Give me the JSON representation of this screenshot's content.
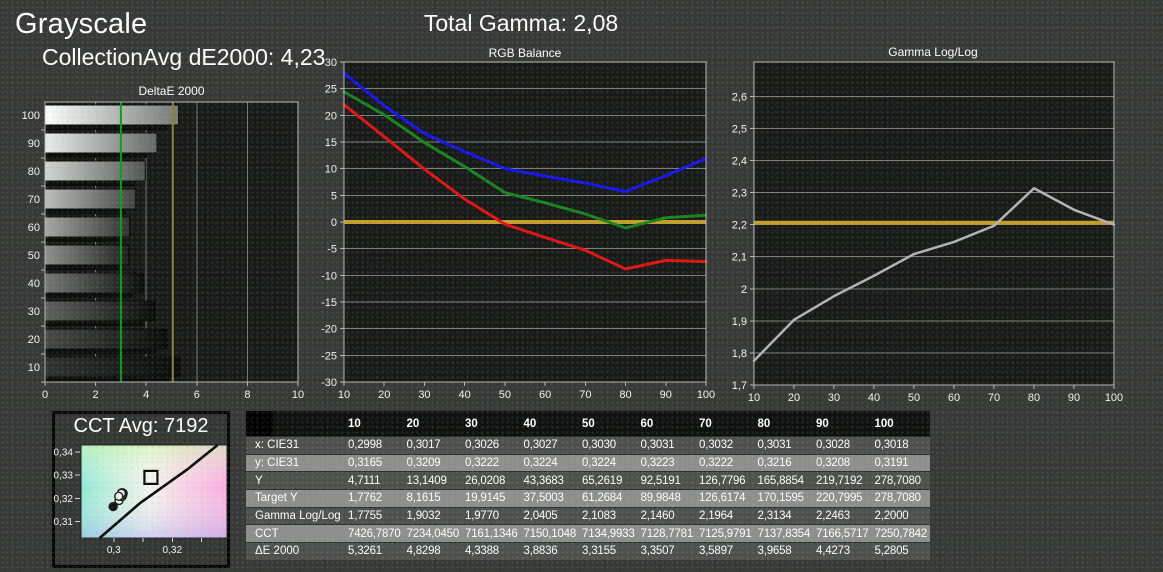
{
  "page": {
    "title": "Grayscale",
    "collection_avg": "CollectionAvg dE2000: 4,23",
    "total_gamma": "Total Gamma: 2,08"
  },
  "colors": {
    "background": "#383838",
    "plot_background": "#191919",
    "grid": "#8f8f8f",
    "plot_border": "#b8b8b8",
    "text": "#ffffff",
    "reference_yellow": "#c49d27",
    "target_green": "#00a414",
    "limit_olive": "#8d7f26",
    "series_red": "#e11212",
    "series_green": "#17831d",
    "series_blue": "#1414ef",
    "series_gamma": "#b3b3b6",
    "table_header_bg": "#101010",
    "table_row_dark": "#4f4f4f",
    "table_row_light": "#8e8e8e"
  },
  "chart_data": [
    {
      "id": "deltae",
      "type": "bar",
      "title": "DeltaE 2000",
      "orientation": "horizontal",
      "categories": [
        "100",
        "90",
        "80",
        "70",
        "60",
        "50",
        "40",
        "30",
        "20",
        "10"
      ],
      "levels": [
        100,
        90,
        80,
        70,
        60,
        50,
        40,
        30,
        20,
        10
      ],
      "values": [
        5.2805,
        4.4273,
        3.9658,
        3.5897,
        3.3507,
        3.3155,
        3.8836,
        4.3388,
        4.8298,
        5.3261
      ],
      "xlim": [
        0,
        10
      ],
      "xtick_values": [
        0,
        2,
        4,
        6,
        8,
        10
      ],
      "xticks": [
        "0",
        "2",
        "4",
        "6",
        "8",
        "10"
      ],
      "target_line": 3.0,
      "limit_line": 5.05,
      "grid": "vertical",
      "legend": "none"
    },
    {
      "id": "rgb_balance",
      "type": "line",
      "title": "RGB Balance",
      "x": [
        10,
        20,
        30,
        40,
        50,
        60,
        70,
        80,
        90,
        100
      ],
      "xticks": [
        "10",
        "20",
        "30",
        "40",
        "50",
        "60",
        "70",
        "80",
        "90",
        "100"
      ],
      "ylim": [
        -30,
        30
      ],
      "ytick_values": [
        30,
        25,
        20,
        15,
        10,
        5,
        0,
        -5,
        -10,
        -15,
        -20,
        -25,
        -30
      ],
      "yticks": [
        "30",
        "25",
        "20",
        "15",
        "10",
        "5",
        "0",
        "-5",
        "-10",
        "-15",
        "-20",
        "-25",
        "-30"
      ],
      "reference_line": 0,
      "grid": "horizontal",
      "legend": "none",
      "series": [
        {
          "name": "Blue",
          "color_key": "series_blue",
          "values": [
            27.9,
            21.8,
            16.6,
            13.2,
            10.0,
            8.6,
            7.3,
            5.7,
            8.7,
            11.9
          ]
        },
        {
          "name": "Green",
          "color_key": "series_green",
          "values": [
            24.4,
            20.1,
            14.9,
            10.4,
            5.5,
            3.6,
            1.5,
            -1.1,
            0.8,
            1.3
          ]
        },
        {
          "name": "Red",
          "color_key": "series_red",
          "values": [
            22.0,
            16.0,
            9.9,
            4.3,
            -0.4,
            -2.9,
            -5.3,
            -8.8,
            -7.2,
            -7.4
          ]
        }
      ]
    },
    {
      "id": "gamma_loglog",
      "type": "line",
      "title": "Gamma Log/Log",
      "x": [
        10,
        20,
        30,
        40,
        50,
        60,
        70,
        80,
        90,
        100
      ],
      "xticks": [
        "10",
        "20",
        "30",
        "40",
        "50",
        "60",
        "70",
        "80",
        "90",
        "100"
      ],
      "ylim": [
        1.7,
        2.707
      ],
      "ytick_values": [
        2.6,
        2.5,
        2.4,
        2.3,
        2.2,
        2.1,
        2.0,
        1.9,
        1.8,
        1.7
      ],
      "yticks": [
        "2,6",
        "2,5",
        "2,4",
        "2,3",
        "2,2",
        "2,1",
        "2",
        "1,9",
        "1,8",
        "1,7"
      ],
      "reference_line": 2.206,
      "grid": "horizontal",
      "legend": "none",
      "series": [
        {
          "name": "Gamma Log/Log",
          "color_key": "series_gamma",
          "values": [
            1.7755,
            1.9032,
            1.977,
            2.0405,
            2.1083,
            2.146,
            2.1964,
            2.3134,
            2.2463,
            2.2
          ]
        }
      ]
    },
    {
      "id": "cie_scatter",
      "type": "scatter",
      "title": "CCT Avg: 7192",
      "xlim": [
        0.2888,
        0.3387
      ],
      "ylim": [
        0.303,
        0.3429
      ],
      "xticks": [
        {
          "v": 0.3,
          "label": "0,3"
        },
        {
          "v": 0.31,
          "label": ""
        },
        {
          "v": 0.32,
          "label": "0,32"
        },
        {
          "v": 0.33,
          "label": ""
        }
      ],
      "yticks": [
        {
          "v": 0.34,
          "label": "0,34"
        },
        {
          "v": 0.33,
          "label": "0,33"
        },
        {
          "v": 0.32,
          "label": "0,32"
        },
        {
          "v": 0.31,
          "label": "0,31"
        }
      ],
      "target": {
        "x": 0.3127,
        "y": 0.329
      },
      "locus": [
        [
          0.2952,
          0.303
        ],
        [
          0.309,
          0.318
        ],
        [
          0.325,
          0.3323
        ],
        [
          0.3355,
          0.3429
        ]
      ],
      "points": [
        {
          "level": 10,
          "x": 0.2998,
          "y": 0.3165
        },
        {
          "level": 20,
          "x": 0.3017,
          "y": 0.3209
        },
        {
          "level": 30,
          "x": 0.3026,
          "y": 0.3222
        },
        {
          "level": 40,
          "x": 0.3027,
          "y": 0.3224
        },
        {
          "level": 50,
          "x": 0.303,
          "y": 0.3224
        },
        {
          "level": 60,
          "x": 0.3031,
          "y": 0.3223
        },
        {
          "level": 70,
          "x": 0.3032,
          "y": 0.3222
        },
        {
          "level": 80,
          "x": 0.3031,
          "y": 0.3216
        },
        {
          "level": 90,
          "x": 0.3028,
          "y": 0.3208
        },
        {
          "level": 100,
          "x": 0.3018,
          "y": 0.3191
        }
      ]
    }
  ],
  "table": {
    "columns": [
      "10",
      "20",
      "30",
      "40",
      "50",
      "60",
      "70",
      "80",
      "90",
      "100"
    ],
    "rows": [
      {
        "label": "x: CIE31",
        "values": [
          "0,2998",
          "0,3017",
          "0,3026",
          "0,3027",
          "0,3030",
          "0,3031",
          "0,3032",
          "0,3031",
          "0,3028",
          "0,3018"
        ]
      },
      {
        "label": "y: CIE31",
        "values": [
          "0,3165",
          "0,3209",
          "0,3222",
          "0,3224",
          "0,3224",
          "0,3223",
          "0,3222",
          "0,3216",
          "0,3208",
          "0,3191"
        ]
      },
      {
        "label": "Y",
        "values": [
          "4,7111",
          "13,1409",
          "26,0208",
          "43,3683",
          "65,2619",
          "92,5191",
          "126,7796",
          "165,8854",
          "219,7192",
          "278,7080"
        ]
      },
      {
        "label": "Target Y",
        "values": [
          "1,7762",
          "8,1615",
          "19,9145",
          "37,5003",
          "61,2684",
          "89,9848",
          "126,6174",
          "170,1595",
          "220,7995",
          "278,7080"
        ]
      },
      {
        "label": "Gamma Log/Log",
        "values": [
          "1,7755",
          "1,9032",
          "1,9770",
          "2,0405",
          "2,1083",
          "2,1460",
          "2,1964",
          "2,3134",
          "2,2463",
          "2,2000"
        ]
      },
      {
        "label": "CCT",
        "values": [
          "7426,7870",
          "7234,0450",
          "7161,1346",
          "7150,1048",
          "7134,9933",
          "7128,7781",
          "7125,9791",
          "7137,8354",
          "7166,5717",
          "7250,7842"
        ]
      },
      {
        "label": "ΔE 2000",
        "values": [
          "5,3261",
          "4,8298",
          "4,3388",
          "3,8836",
          "3,3155",
          "3,3507",
          "3,5897",
          "3,9658",
          "4,4273",
          "5,2805"
        ]
      }
    ]
  }
}
